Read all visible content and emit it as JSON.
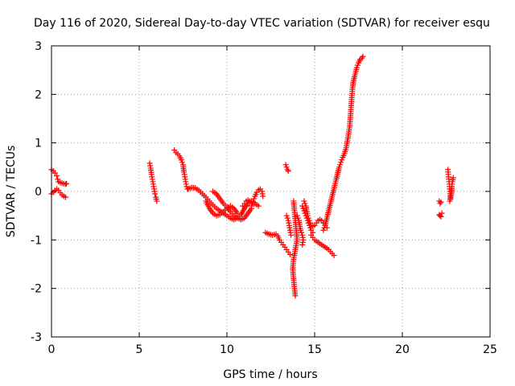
{
  "chart_data": {
    "type": "scatter",
    "title": "Day 116 of 2020, Sidereal Day-to-day VTEC variation (SDTVAR) for receiver esqu",
    "xlabel": "GPS time / hours",
    "ylabel": "SDTVAR / TECUs",
    "xlim": [
      0,
      25
    ],
    "ylim": [
      -3,
      3
    ],
    "xticks": [
      0,
      5,
      10,
      15,
      20,
      25
    ],
    "yticks": [
      -3,
      -2,
      -1,
      0,
      1,
      2,
      3
    ],
    "grid": true,
    "marker": "plus",
    "color": "#ff0000",
    "series": [
      {
        "segments": [
          [
            [
              0.0,
              0.45
            ],
            [
              0.1,
              0.42
            ],
            [
              0.2,
              0.38
            ],
            [
              0.3,
              0.32
            ],
            [
              0.35,
              0.25
            ],
            [
              0.4,
              0.2
            ],
            [
              0.5,
              0.18
            ],
            [
              0.6,
              0.17
            ],
            [
              0.7,
              0.16
            ],
            [
              0.8,
              0.15
            ],
            [
              0.85,
              0.16
            ]
          ],
          [
            [
              0.0,
              -0.05
            ],
            [
              0.1,
              -0.02
            ],
            [
              0.2,
              0.02
            ],
            [
              0.3,
              0.05
            ],
            [
              0.4,
              0.02
            ],
            [
              0.5,
              -0.03
            ],
            [
              0.6,
              -0.07
            ],
            [
              0.7,
              -0.1
            ],
            [
              0.8,
              -0.12
            ]
          ],
          [
            [
              5.6,
              0.58
            ],
            [
              5.65,
              0.48
            ],
            [
              5.7,
              0.35
            ],
            [
              5.75,
              0.25
            ],
            [
              5.8,
              0.15
            ],
            [
              5.85,
              0.05
            ],
            [
              5.9,
              -0.05
            ],
            [
              5.95,
              -0.12
            ],
            [
              6.0,
              -0.2
            ]
          ],
          [
            [
              7.0,
              0.85
            ],
            [
              7.1,
              0.8
            ],
            [
              7.2,
              0.77
            ],
            [
              7.3,
              0.73
            ],
            [
              7.4,
              0.65
            ],
            [
              7.5,
              0.55
            ],
            [
              7.55,
              0.4
            ],
            [
              7.6,
              0.3
            ],
            [
              7.65,
              0.2
            ],
            [
              7.7,
              0.1
            ],
            [
              7.75,
              0.05
            ]
          ],
          [
            [
              7.8,
              0.05
            ],
            [
              8.0,
              0.08
            ],
            [
              8.2,
              0.07
            ],
            [
              8.4,
              0.02
            ],
            [
              8.6,
              -0.05
            ],
            [
              8.8,
              -0.12
            ],
            [
              9.0,
              -0.2
            ],
            [
              9.2,
              -0.28
            ],
            [
              9.4,
              -0.35
            ],
            [
              9.6,
              -0.4
            ],
            [
              9.8,
              -0.45
            ],
            [
              10.0,
              -0.5
            ],
            [
              10.2,
              -0.55
            ],
            [
              10.4,
              -0.58
            ],
            [
              10.6,
              -0.55
            ],
            [
              10.8,
              -0.48
            ],
            [
              11.0,
              -0.35
            ],
            [
              11.2,
              -0.25
            ],
            [
              11.4,
              -0.2
            ],
            [
              11.6,
              -0.25
            ],
            [
              11.8,
              -0.3
            ]
          ],
          [
            [
              8.8,
              -0.2
            ],
            [
              9.0,
              -0.35
            ],
            [
              9.2,
              -0.45
            ],
            [
              9.4,
              -0.5
            ],
            [
              9.6,
              -0.48
            ],
            [
              9.8,
              -0.42
            ],
            [
              10.0,
              -0.35
            ],
            [
              10.2,
              -0.3
            ],
            [
              10.4,
              -0.35
            ],
            [
              10.6,
              -0.45
            ]
          ],
          [
            [
              9.2,
              0.0
            ],
            [
              9.4,
              -0.05
            ],
            [
              9.6,
              -0.15
            ],
            [
              9.8,
              -0.25
            ],
            [
              10.0,
              -0.32
            ],
            [
              10.2,
              -0.42
            ],
            [
              10.4,
              -0.5
            ],
            [
              10.6,
              -0.55
            ],
            [
              10.8,
              -0.58
            ],
            [
              11.0,
              -0.55
            ],
            [
              11.2,
              -0.45
            ],
            [
              11.4,
              -0.35
            ]
          ],
          [
            [
              11.4,
              -0.3
            ],
            [
              11.5,
              -0.2
            ],
            [
              11.6,
              -0.1
            ],
            [
              11.7,
              -0.02
            ],
            [
              11.8,
              0.03
            ],
            [
              11.9,
              0.05
            ],
            [
              12.0,
              0.0
            ],
            [
              12.05,
              -0.1
            ]
          ],
          [
            [
              10.9,
              -0.3
            ],
            [
              11.0,
              -0.25
            ],
            [
              11.1,
              -0.2
            ],
            [
              11.2,
              -0.18
            ],
            [
              11.3,
              -0.2
            ],
            [
              11.4,
              -0.22
            ]
          ],
          [
            [
              12.2,
              -0.85
            ],
            [
              12.4,
              -0.88
            ],
            [
              12.6,
              -0.9
            ],
            [
              12.8,
              -0.88
            ],
            [
              12.9,
              -0.92
            ],
            [
              13.0,
              -1.0
            ],
            [
              13.1,
              -1.05
            ],
            [
              13.2,
              -1.1
            ],
            [
              13.3,
              -1.15
            ],
            [
              13.4,
              -1.2
            ],
            [
              13.5,
              -1.25
            ],
            [
              13.6,
              -1.3
            ]
          ],
          [
            [
              13.35,
              0.55
            ],
            [
              13.4,
              0.5
            ],
            [
              13.45,
              0.45
            ],
            [
              13.5,
              0.42
            ]
          ],
          [
            [
              13.4,
              -0.5
            ],
            [
              13.45,
              -0.55
            ],
            [
              13.5,
              -0.6
            ],
            [
              13.55,
              -0.7
            ],
            [
              13.6,
              -0.8
            ],
            [
              13.65,
              -0.9
            ]
          ],
          [
            [
              13.8,
              -0.2
            ],
            [
              13.85,
              -0.4
            ],
            [
              13.9,
              -0.6
            ],
            [
              13.95,
              -0.8
            ],
            [
              14.0,
              -1.0
            ],
            [
              13.9,
              -1.2
            ],
            [
              13.8,
              -1.4
            ],
            [
              13.75,
              -1.6
            ],
            [
              13.8,
              -1.8
            ],
            [
              13.85,
              -2.0
            ],
            [
              13.9,
              -2.15
            ]
          ],
          [
            [
              14.0,
              -0.5
            ],
            [
              14.1,
              -0.6
            ],
            [
              14.2,
              -0.8
            ],
            [
              14.3,
              -0.9
            ],
            [
              14.35,
              -1.0
            ],
            [
              14.3,
              -1.1
            ]
          ],
          [
            [
              14.3,
              -0.3
            ],
            [
              14.4,
              -0.4
            ],
            [
              14.5,
              -0.5
            ],
            [
              14.6,
              -0.6
            ],
            [
              14.7,
              -0.7
            ],
            [
              14.8,
              -0.8
            ],
            [
              14.9,
              -0.85
            ]
          ],
          [
            [
              14.4,
              -0.2
            ],
            [
              14.5,
              -0.3
            ],
            [
              14.6,
              -0.5
            ],
            [
              14.7,
              -0.6
            ],
            [
              14.8,
              -0.7
            ],
            [
              14.9,
              -0.72
            ],
            [
              15.0,
              -0.7
            ],
            [
              15.1,
              -0.65
            ],
            [
              15.2,
              -0.6
            ],
            [
              15.3,
              -0.58
            ],
            [
              15.4,
              -0.6
            ],
            [
              15.5,
              -0.65
            ],
            [
              15.6,
              -0.7
            ],
            [
              15.7,
              -0.75
            ]
          ],
          [
            [
              14.8,
              -0.9
            ],
            [
              14.9,
              -0.95
            ],
            [
              15.0,
              -1.0
            ],
            [
              15.2,
              -1.05
            ],
            [
              15.4,
              -1.1
            ],
            [
              15.6,
              -1.15
            ],
            [
              15.8,
              -1.2
            ],
            [
              16.0,
              -1.28
            ],
            [
              16.1,
              -1.32
            ]
          ],
          [
            [
              15.5,
              -0.8
            ],
            [
              15.6,
              -0.7
            ],
            [
              15.7,
              -0.55
            ],
            [
              15.8,
              -0.4
            ],
            [
              15.9,
              -0.25
            ],
            [
              16.0,
              -0.1
            ],
            [
              16.1,
              0.05
            ],
            [
              16.2,
              0.2
            ],
            [
              16.3,
              0.35
            ],
            [
              16.4,
              0.5
            ],
            [
              16.5,
              0.6
            ],
            [
              16.6,
              0.7
            ],
            [
              16.7,
              0.78
            ],
            [
              16.8,
              0.9
            ],
            [
              16.9,
              1.1
            ],
            [
              17.0,
              1.35
            ],
            [
              17.05,
              1.6
            ],
            [
              17.1,
              1.85
            ],
            [
              17.15,
              2.1
            ],
            [
              17.2,
              2.25
            ],
            [
              17.3,
              2.4
            ],
            [
              17.4,
              2.55
            ],
            [
              17.5,
              2.65
            ],
            [
              17.6,
              2.72
            ],
            [
              17.7,
              2.75
            ],
            [
              17.75,
              2.78
            ]
          ],
          [
            [
              22.1,
              -0.2
            ],
            [
              22.15,
              -0.25
            ],
            [
              22.2,
              -0.22
            ]
          ],
          [
            [
              22.1,
              -0.48
            ],
            [
              22.15,
              -0.5
            ],
            [
              22.2,
              -0.52
            ],
            [
              22.25,
              -0.45
            ]
          ],
          [
            [
              22.6,
              0.45
            ],
            [
              22.62,
              0.35
            ],
            [
              22.65,
              0.25
            ],
            [
              22.68,
              0.15
            ],
            [
              22.7,
              0.05
            ],
            [
              22.72,
              -0.05
            ],
            [
              22.75,
              -0.15
            ],
            [
              22.7,
              -0.2
            ],
            [
              22.8,
              -0.05
            ],
            [
              22.82,
              0.1
            ],
            [
              22.85,
              0.2
            ],
            [
              22.9,
              0.28
            ]
          ]
        ]
      }
    ]
  }
}
